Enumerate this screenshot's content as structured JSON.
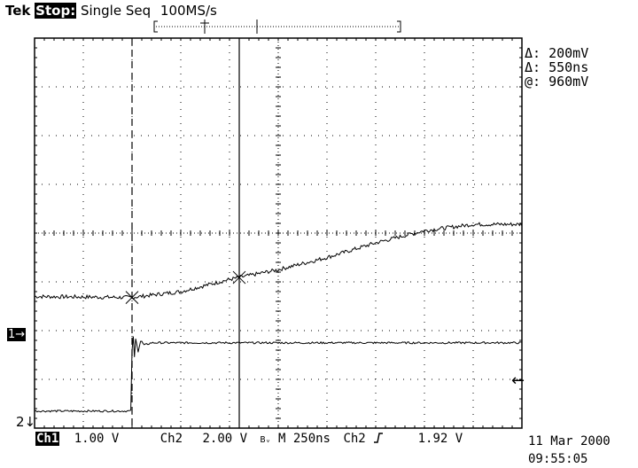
{
  "header": {
    "brand": "Tek",
    "run_state": "Stop:",
    "mode": "Single Seq",
    "sample_rate": "100MS/s"
  },
  "readouts": {
    "delta_v": "Δ: 200mV",
    "delta_t": "Δ: 550ns",
    "at_v": "@: 960mV"
  },
  "markers": {
    "ch1": "1→",
    "ch2": "2↓",
    "trigger": "←"
  },
  "footer": {
    "ch1_label": "Ch1",
    "ch1_scale": "1.00 V",
    "ch2_label": "Ch2",
    "ch2_scale": "2.00 V",
    "bw_symbol": "Bᵥ",
    "timebase": "M  250ns",
    "trigger_source": "Ch2",
    "trigger_slope_icon": "rising-edge-icon",
    "trigger_level": "1.92 V"
  },
  "timestamp": {
    "date": "11 Mar 2000",
    "time": "09:55:05"
  },
  "chart_data": {
    "type": "line",
    "grid": true,
    "x_divisions": 10,
    "y_divisions": 8,
    "xlim_div": [
      0,
      10
    ],
    "ylim_div": [
      -4,
      4
    ],
    "cursors": {
      "vertical_dashed_div": 2,
      "vertical_solid_div": 4.2
    },
    "series": [
      {
        "name": "Ch1",
        "x_div": [
          0,
          2,
          3,
          4,
          5,
          6,
          7,
          8,
          9,
          10
        ],
        "y_div": [
          -1.3,
          -1.32,
          -1.2,
          -0.95,
          -0.75,
          -0.5,
          -0.2,
          0.05,
          0.18,
          0.18
        ],
        "noise": 0.04
      },
      {
        "name": "Ch2",
        "x_div": [
          0,
          1.99,
          2.0,
          2.02,
          2.05,
          2.08,
          2.12,
          2.18,
          2.25,
          2.4,
          10
        ],
        "y_div": [
          -3.65,
          -3.65,
          -2.4,
          -2.05,
          -2.55,
          -2.1,
          -2.45,
          -2.2,
          -2.3,
          -2.25,
          -2.25
        ],
        "noise": 0.02
      }
    ]
  }
}
